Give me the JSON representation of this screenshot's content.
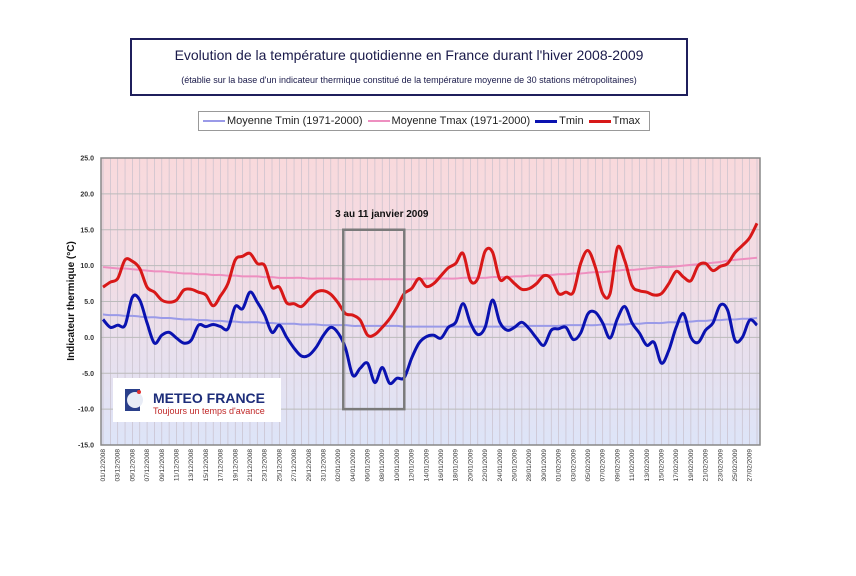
{
  "title": "Evolution de la température quotidienne en France durant l'hiver 2008-2009",
  "subtitle": "(établie sur la base d'un indicateur thermique constitué de la température moyenne de 30 stations métropolitaines)",
  "logo": {
    "name": "METEO FRANCE",
    "tagline": "Toujours un temps d'avance"
  },
  "annotation": {
    "label": "3 au 11 janvier 2009",
    "from": "03/01/2009",
    "to": "11/01/2009",
    "y_range": [
      -10,
      15
    ]
  },
  "colors": {
    "tmin_normal": "#9a9ae8",
    "tmax_normal": "#ee8fc0",
    "tmin": "#0a12b0",
    "tmax": "#d81818",
    "bg_top": "#f9d9dc",
    "bg_bottom": "#dde4f8"
  },
  "chart_data": {
    "type": "line",
    "ylabel": "Indicateur thermique (°C)",
    "ylim": [
      -15,
      25
    ],
    "yticks": [
      "25.0",
      "20.0",
      "15.0",
      "10.0",
      "5.0",
      "0.0",
      "-5.0",
      "-10.0",
      "-15.0"
    ],
    "grid": true,
    "legend_position": "top",
    "x_start": "01/12/2008",
    "x_end": "28/02/2009",
    "xtick_labels": [
      "01/12/2008",
      "03/12/2008",
      "05/12/2008",
      "07/12/2008",
      "09/12/2008",
      "11/12/2008",
      "13/12/2008",
      "15/12/2008",
      "17/12/2008",
      "19/12/2008",
      "21/12/2008",
      "23/12/2008",
      "25/12/2008",
      "27/12/2008",
      "29/12/2008",
      "31/12/2008",
      "02/01/2009",
      "04/01/2009",
      "06/01/2009",
      "08/01/2009",
      "10/01/2009",
      "12/01/2009",
      "14/01/2009",
      "16/01/2009",
      "18/01/2009",
      "20/01/2009",
      "22/01/2009",
      "24/01/2009",
      "26/01/2009",
      "28/01/2009",
      "30/01/2009",
      "01/02/2009",
      "03/02/2009",
      "05/02/2009",
      "07/02/2009",
      "09/02/2009",
      "11/02/2009",
      "13/02/2009",
      "15/02/2009",
      "17/02/2009",
      "19/02/2009",
      "21/02/2009",
      "23/02/2009",
      "25/02/2009",
      "27/02/2009"
    ],
    "series": [
      {
        "name": "Moyenne Tmin (1971-2000)",
        "color_key": "tmin_normal",
        "width": 2,
        "values": [
          3.2,
          3.1,
          3.1,
          3.0,
          3.0,
          2.9,
          2.8,
          2.8,
          2.7,
          2.7,
          2.6,
          2.5,
          2.5,
          2.4,
          2.4,
          2.3,
          2.3,
          2.2,
          2.2,
          2.1,
          2.1,
          2.1,
          2.0,
          2.0,
          1.9,
          1.9,
          1.9,
          1.8,
          1.8,
          1.8,
          1.7,
          1.7,
          1.7,
          1.7,
          1.6,
          1.6,
          1.6,
          1.6,
          1.6,
          1.6,
          1.6,
          1.5,
          1.5,
          1.5,
          1.5,
          1.5,
          1.5,
          1.5,
          1.5,
          1.5,
          1.5,
          1.5,
          1.5,
          1.5,
          1.5,
          1.5,
          1.5,
          1.5,
          1.6,
          1.6,
          1.6,
          1.6,
          1.6,
          1.7,
          1.7,
          1.7,
          1.7,
          1.7,
          1.8,
          1.8,
          1.8,
          1.8,
          1.9,
          1.9,
          2.0,
          2.0,
          2.0,
          2.1,
          2.1,
          2.2,
          2.2,
          2.3,
          2.3,
          2.4,
          2.4,
          2.5,
          2.5,
          2.6,
          2.6,
          2.7
        ]
      },
      {
        "name": "Moyenne Tmax (1971-2000)",
        "color_key": "tmax_normal",
        "width": 2,
        "values": [
          9.8,
          9.7,
          9.6,
          9.6,
          9.5,
          9.4,
          9.3,
          9.2,
          9.2,
          9.1,
          9.0,
          8.9,
          8.9,
          8.8,
          8.8,
          8.7,
          8.7,
          8.6,
          8.6,
          8.5,
          8.5,
          8.5,
          8.4,
          8.4,
          8.3,
          8.3,
          8.3,
          8.3,
          8.2,
          8.2,
          8.2,
          8.2,
          8.2,
          8.1,
          8.1,
          8.1,
          8.1,
          8.1,
          8.1,
          8.1,
          8.1,
          8.1,
          8.1,
          8.1,
          8.2,
          8.2,
          8.2,
          8.2,
          8.2,
          8.3,
          8.3,
          8.3,
          8.3,
          8.4,
          8.4,
          8.4,
          8.5,
          8.5,
          8.6,
          8.6,
          8.7,
          8.7,
          8.8,
          8.8,
          8.9,
          8.9,
          9.0,
          9.1,
          9.1,
          9.2,
          9.3,
          9.4,
          9.4,
          9.5,
          9.6,
          9.7,
          9.8,
          9.8,
          9.9,
          10.0,
          10.1,
          10.2,
          10.3,
          10.4,
          10.5,
          10.7,
          10.8,
          10.9,
          11.0,
          11.1
        ]
      },
      {
        "name": "Tmin",
        "color_key": "tmin",
        "width": 3,
        "values": [
          2.5,
          1.4,
          1.7,
          1.7,
          5.6,
          5.2,
          2.0,
          -0.8,
          0.3,
          0.7,
          -0.1,
          -0.8,
          -0.4,
          1.7,
          1.5,
          1.8,
          1.5,
          1.2,
          4.3,
          4.0,
          6.3,
          4.9,
          3.1,
          0.7,
          1.7,
          0.0,
          -1.5,
          -2.6,
          -2.5,
          -1.4,
          0.3,
          1.4,
          0.6,
          -1.5,
          -5.3,
          -4.3,
          -3.6,
          -6.3,
          -4.2,
          -6.4,
          -5.7,
          -5.6,
          -2.9,
          -0.8,
          0.1,
          0.3,
          -0.1,
          1.4,
          2.1,
          4.7,
          2.0,
          0.4,
          1.4,
          5.2,
          2.1,
          1.0,
          1.4,
          2.1,
          1.2,
          -0.1,
          -1.1,
          1.0,
          1.2,
          1.4,
          -0.3,
          0.6,
          3.3,
          3.5,
          2.0,
          -0.1,
          2.6,
          4.3,
          2.0,
          0.6,
          -1.1,
          -0.7,
          -3.6,
          -1.8,
          1.4,
          3.3,
          0.0,
          -0.7,
          1.0,
          2.0,
          4.5,
          3.8,
          -0.4,
          0.0,
          2.4,
          1.7
        ]
      },
      {
        "name": "Tmax",
        "color_key": "tmax",
        "width": 3,
        "values": [
          7.0,
          7.7,
          8.2,
          10.8,
          10.6,
          9.6,
          7.0,
          6.3,
          5.2,
          4.9,
          5.2,
          6.6,
          6.7,
          6.3,
          5.9,
          4.4,
          5.8,
          7.5,
          10.8,
          11.3,
          11.7,
          10.3,
          10.0,
          7.0,
          7.0,
          4.8,
          4.7,
          4.3,
          5.3,
          6.3,
          6.5,
          6.0,
          4.8,
          3.3,
          3.1,
          2.4,
          0.3,
          0.4,
          1.4,
          2.6,
          4.2,
          6.1,
          6.8,
          8.2,
          7.1,
          7.5,
          8.6,
          9.7,
          10.3,
          11.7,
          7.9,
          8.2,
          12.0,
          11.9,
          8.1,
          8.4,
          7.5,
          6.7,
          6.8,
          7.5,
          8.6,
          8.2,
          6.1,
          6.3,
          6.3,
          10.3,
          12.1,
          9.8,
          6.1,
          6.1,
          12.5,
          10.7,
          7.2,
          6.5,
          6.3,
          5.9,
          6.1,
          7.5,
          9.2,
          8.4,
          7.9,
          10.0,
          10.3,
          9.3,
          9.9,
          10.3,
          11.8,
          12.8,
          13.9,
          15.9
        ]
      }
    ]
  }
}
